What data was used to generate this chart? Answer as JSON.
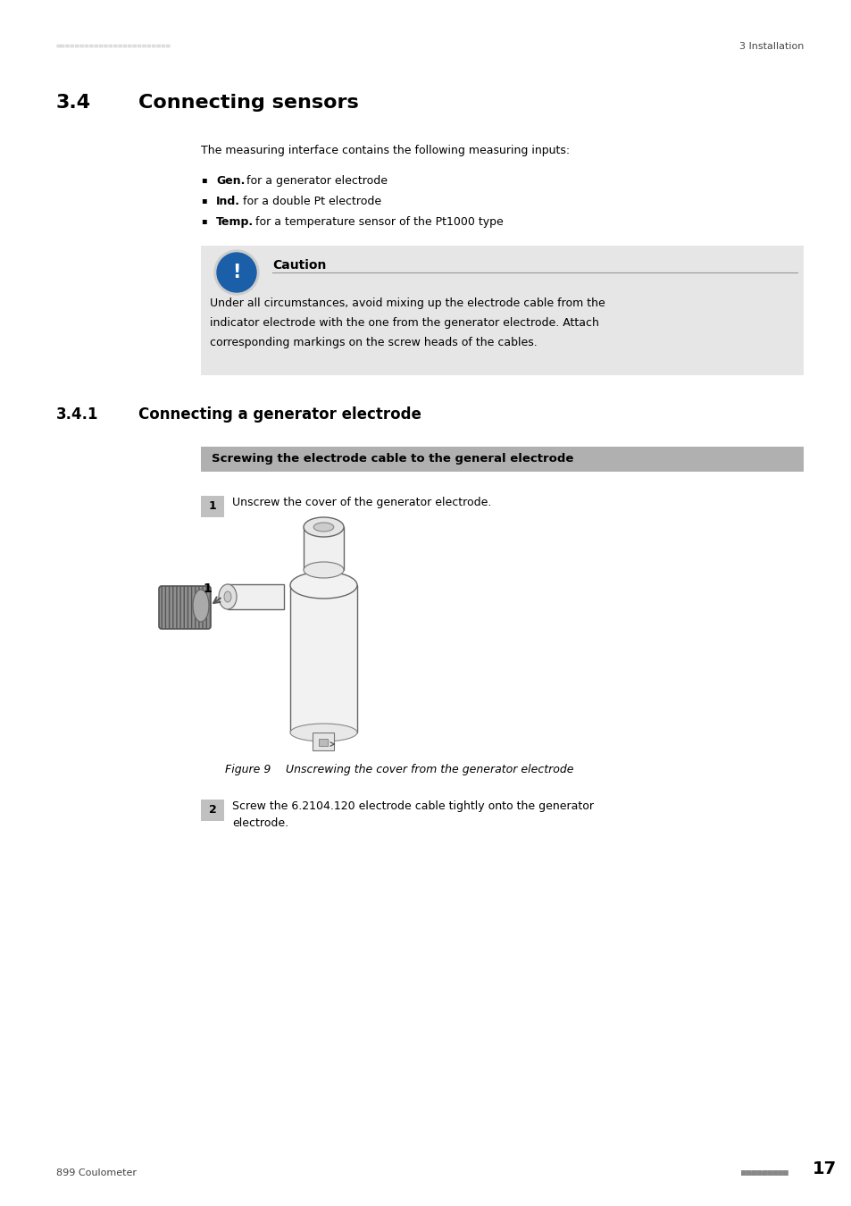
{
  "page_width": 9.54,
  "page_height": 13.5,
  "bg_color": "#ffffff",
  "header_dots": "========================",
  "header_right": "3 Installation",
  "section_number": "3.4",
  "section_title": "Connecting sensors",
  "intro_text": "The measuring interface contains the following measuring inputs:",
  "bullets": [
    {
      "bold": "Gen.",
      "rest": " for a generator electrode"
    },
    {
      "bold": "Ind.",
      "rest": " for a double Pt electrode"
    },
    {
      "bold": "Temp.",
      "rest": " for a temperature sensor of the Pt1000 type"
    }
  ],
  "caution_title": "Caution",
  "caution_text_line1": "Under all circumstances, avoid mixing up the electrode cable from the",
  "caution_text_line2": "indicator electrode with the one from the generator electrode. Attach",
  "caution_text_line3": "corresponding markings on the screw heads of the cables.",
  "caution_bg": "#e6e6e6",
  "caution_icon_color": "#1a5fa8",
  "subsection_number": "3.4.1",
  "subsection_title": "Connecting a generator electrode",
  "procedure_header": "Screwing the electrode cable to the general electrode",
  "procedure_header_bg": "#b0b0b0",
  "step1_text": "Unscrew the cover of the generator electrode.",
  "figure_caption_label": "Figure 9",
  "figure_caption_text": "Unscrewing the cover from the generator electrode",
  "step2_text": "Screw the 6.2104.120 electrode cable tightly onto the generator\nelectrode.",
  "footer_left": "899 Coulometer",
  "footer_dots": "■■■■■■■■■",
  "footer_page": "17",
  "step_num_bg": "#c0c0c0"
}
